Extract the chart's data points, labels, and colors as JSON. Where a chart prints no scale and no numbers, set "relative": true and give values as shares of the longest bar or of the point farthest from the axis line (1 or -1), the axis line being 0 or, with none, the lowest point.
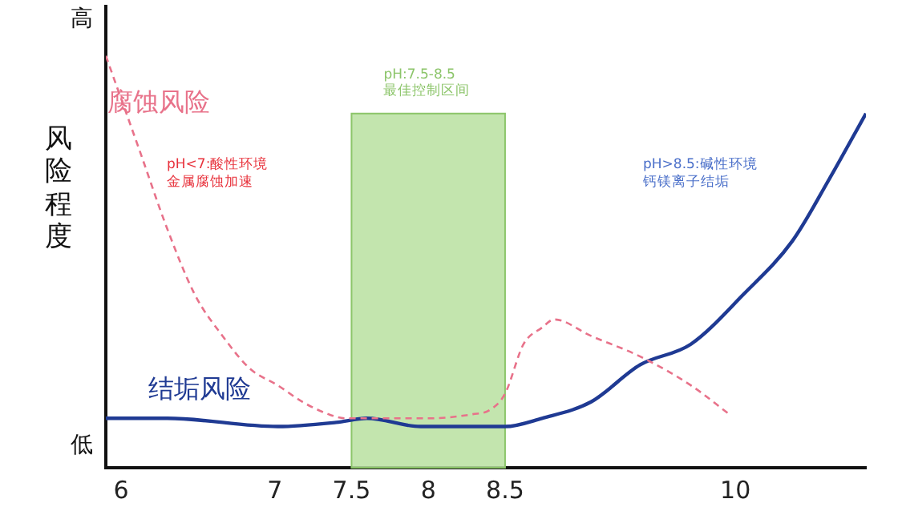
{
  "chart_data": {
    "type": "line",
    "relative": true,
    "ylabel": "风险程度",
    "xlim": [
      5.9,
      10.85
    ],
    "xticks": [
      6,
      7,
      7.5,
      8,
      8.5,
      10
    ],
    "series": [
      {
        "name": "腐蚀风险",
        "color": "#e8728a",
        "line_style": "dashed",
        "x": [
          5.9,
          6.12,
          6.3,
          6.48,
          6.66,
          6.84,
          7.02,
          7.18,
          7.35,
          7.46,
          8,
          8.29,
          8.4,
          8.5,
          8.62,
          8.74,
          8.82,
          9.06,
          9.38,
          9.71,
          9.96
        ],
        "values": [
          1.0,
          0.77,
          0.58,
          0.42,
          0.32,
          0.24,
          0.2,
          0.16,
          0.13,
          0.12,
          0.12,
          0.13,
          0.14,
          0.18,
          0.3,
          0.34,
          0.36,
          0.32,
          0.27,
          0.2,
          0.13
        ]
      },
      {
        "name": "结垢风险",
        "color": "#1f3a93",
        "line_style": "solid",
        "x": [
          5.9,
          6.3,
          7.02,
          7.4,
          7.6,
          7.95,
          8.08,
          8.5,
          8.74,
          9.06,
          9.38,
          9.71,
          10.05,
          10.37,
          10.61,
          10.85
        ],
        "values": [
          0.12,
          0.12,
          0.1,
          0.11,
          0.12,
          0.1,
          0.1,
          0.1,
          0.12,
          0.16,
          0.25,
          0.3,
          0.42,
          0.55,
          0.7,
          0.86
        ]
      }
    ],
    "bands": [
      {
        "axis": "x",
        "from": 7.5,
        "to": 8.5,
        "label": "pH:7.5-8.5\n最佳控制区间",
        "color": "#b9e0a0"
      }
    ],
    "annotations": [
      "高",
      "低",
      "pH<7:酸性环境金属腐蚀加速",
      "pH>8.5:碱性环境钙镁离子结垢"
    ],
    "grid": false,
    "legend": false,
    "marker": "none"
  }
}
